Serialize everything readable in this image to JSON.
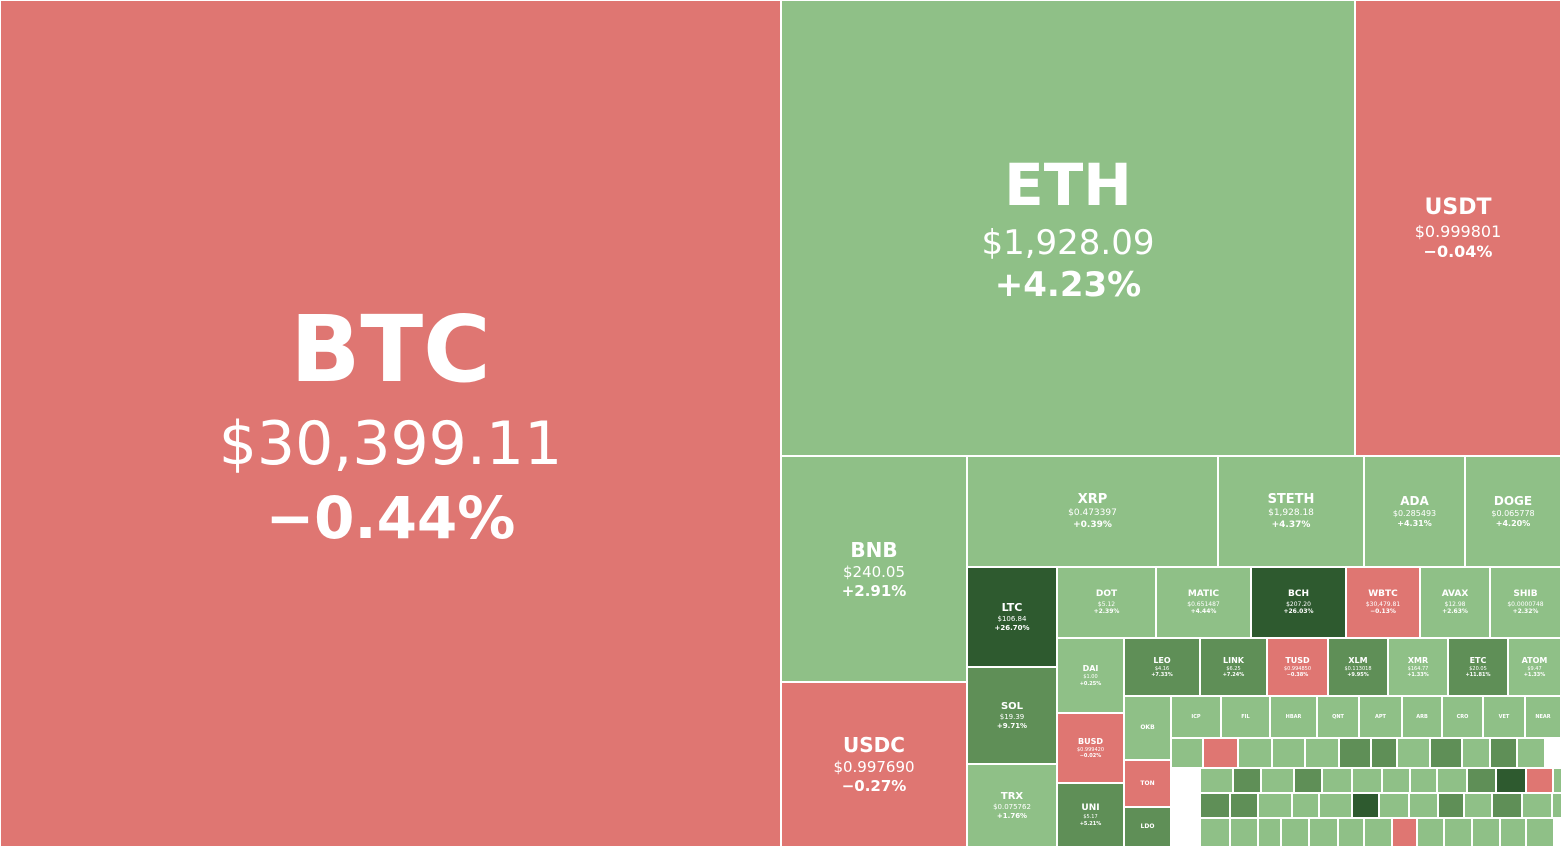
{
  "chart_data": {
    "type": "treemap",
    "title": "",
    "value_unit": "USD",
    "colors": {
      "negative": "#df7672",
      "positive_1": "#8fc087",
      "positive_2": "#5f8f57",
      "positive_3": "#2e5a2f",
      "border": "#ffffff"
    },
    "tiles": [
      {
        "symbol": "BTC",
        "price": "$30,399.11",
        "change": "−0.44%",
        "change_pct": -0.44
      },
      {
        "symbol": "ETH",
        "price": "$1,928.09",
        "change": "+4.23%",
        "change_pct": 4.23
      },
      {
        "symbol": "USDT",
        "price": "$0.999801",
        "change": "−0.04%",
        "change_pct": -0.04
      },
      {
        "symbol": "BNB",
        "price": "$240.05",
        "change": "+2.91%",
        "change_pct": 2.91
      },
      {
        "symbol": "USDC",
        "price": "$0.997690",
        "change": "−0.27%",
        "change_pct": -0.27
      },
      {
        "symbol": "XRP",
        "price": "$0.473397",
        "change": "+0.39%",
        "change_pct": 0.39
      },
      {
        "symbol": "STETH",
        "price": "$1,928.18",
        "change": "+4.37%",
        "change_pct": 4.37
      },
      {
        "symbol": "ADA",
        "price": "$0.285493",
        "change": "+4.31%",
        "change_pct": 4.31
      },
      {
        "symbol": "DOGE",
        "price": "$0.065778",
        "change": "+4.20%",
        "change_pct": 4.2
      },
      {
        "symbol": "LTC",
        "price": "$106.84",
        "change": "+26.70%",
        "change_pct": 26.7
      },
      {
        "symbol": "DOT",
        "price": "$5.12",
        "change": "+2.39%",
        "change_pct": 2.39
      },
      {
        "symbol": "MATIC",
        "price": "$0.651487",
        "change": "+4.44%",
        "change_pct": 4.44
      },
      {
        "symbol": "BCH",
        "price": "$207.20",
        "change": "+26.03%",
        "change_pct": 26.03
      },
      {
        "symbol": "WBTC",
        "price": "$30,479.81",
        "change": "−0.13%",
        "change_pct": -0.13
      },
      {
        "symbol": "AVAX",
        "price": "$12.98",
        "change": "+2.63%",
        "change_pct": 2.63
      },
      {
        "symbol": "SHIB",
        "price": "$0.0000748",
        "change": "+2.32%",
        "change_pct": 2.32
      },
      {
        "symbol": "SOL",
        "price": "$19.39",
        "change": "+9.71%",
        "change_pct": 9.71
      },
      {
        "symbol": "DAI",
        "price": "$1.00",
        "change": "+0.25%",
        "change_pct": 0.25
      },
      {
        "symbol": "LEO",
        "price": "$4.16",
        "change": "+7.33%",
        "change_pct": 7.33
      },
      {
        "symbol": "LINK",
        "price": "$6.25",
        "change": "+7.24%",
        "change_pct": 7.24
      },
      {
        "symbol": "TUSD",
        "price": "$0.994850",
        "change": "−0.38%",
        "change_pct": -0.38
      },
      {
        "symbol": "XLM",
        "price": "$0.113018",
        "change": "+9.95%",
        "change_pct": 9.95
      },
      {
        "symbol": "XMR",
        "price": "$164.77",
        "change": "+1.33%",
        "change_pct": 1.33
      },
      {
        "symbol": "ETC",
        "price": "$20.05",
        "change": "+11.81%",
        "change_pct": 11.81
      },
      {
        "symbol": "ATOM",
        "price": "$9.47",
        "change": "+1.33%",
        "change_pct": 1.33
      },
      {
        "symbol": "BUSD",
        "price": "$0.999420",
        "change": "−0.02%",
        "change_pct": -0.02
      },
      {
        "symbol": "TRX",
        "price": "$0.075762",
        "change": "+1.76%",
        "change_pct": 1.76
      },
      {
        "symbol": "UNI",
        "price": "$5.17",
        "change": "+5.21%",
        "change_pct": 5.21
      },
      {
        "symbol": "OKB",
        "price": "",
        "change": "",
        "change_pct": 2.0
      },
      {
        "symbol": "TON",
        "price": "",
        "change": "",
        "change_pct": -1.4
      },
      {
        "symbol": "LDO",
        "price": "",
        "change": "",
        "change_pct": 5.0
      },
      {
        "symbol": "ICP",
        "price": "",
        "change": "",
        "change_pct": 2.0
      },
      {
        "symbol": "FIL",
        "price": "",
        "change": "",
        "change_pct": 2.0
      },
      {
        "symbol": "HBAR",
        "price": "",
        "change": "",
        "change_pct": 2.0
      },
      {
        "symbol": "QNT",
        "price": "",
        "change": "",
        "change_pct": 2.0
      },
      {
        "symbol": "APT",
        "price": "",
        "change": "",
        "change_pct": 2.0
      },
      {
        "symbol": "ARB",
        "price": "",
        "change": "",
        "change_pct": 2.0
      },
      {
        "symbol": "CRO",
        "price": "",
        "change": "",
        "change_pct": 2.0
      },
      {
        "symbol": "VET",
        "price": "",
        "change": "",
        "change_pct": 2.0
      },
      {
        "symbol": "NEAR",
        "price": "",
        "change": "",
        "change_pct": 2.0
      }
    ],
    "small_tiles": [
      {
        "change_pct": 2
      },
      {
        "change_pct": -1
      },
      {
        "change_pct": 2
      },
      {
        "change_pct": 2
      },
      {
        "change_pct": 2
      },
      {
        "change_pct": 7
      },
      {
        "change_pct": 7
      },
      {
        "change_pct": 2
      },
      {
        "change_pct": 7
      },
      {
        "change_pct": 2
      },
      {
        "change_pct": 7
      },
      {
        "change_pct": 2
      },
      {
        "change_pct": 2
      },
      {
        "change_pct": 7
      },
      {
        "change_pct": 2
      },
      {
        "change_pct": 7
      },
      {
        "change_pct": 2
      },
      {
        "change_pct": 2
      },
      {
        "change_pct": 2
      },
      {
        "change_pct": 2
      },
      {
        "change_pct": 2
      },
      {
        "change_pct": 7
      },
      {
        "change_pct": 20
      },
      {
        "change_pct": -1
      },
      {
        "change_pct": 2
      },
      {
        "change_pct": 7
      },
      {
        "change_pct": 7
      },
      {
        "change_pct": 2
      },
      {
        "change_pct": 2
      },
      {
        "change_pct": 2
      },
      {
        "change_pct": 20
      },
      {
        "change_pct": 2
      },
      {
        "change_pct": 2
      },
      {
        "change_pct": 7
      },
      {
        "change_pct": 2
      },
      {
        "change_pct": 7
      },
      {
        "change_pct": 2
      },
      {
        "change_pct": 2
      },
      {
        "change_pct": 2
      },
      {
        "change_pct": 2
      },
      {
        "change_pct": 2
      },
      {
        "change_pct": 2
      },
      {
        "change_pct": 2
      },
      {
        "change_pct": 2
      },
      {
        "change_pct": 2
      },
      {
        "change_pct": -1
      },
      {
        "change_pct": 2
      },
      {
        "change_pct": 2
      },
      {
        "change_pct": 2
      },
      {
        "change_pct": 2
      },
      {
        "change_pct": 2
      }
    ]
  }
}
